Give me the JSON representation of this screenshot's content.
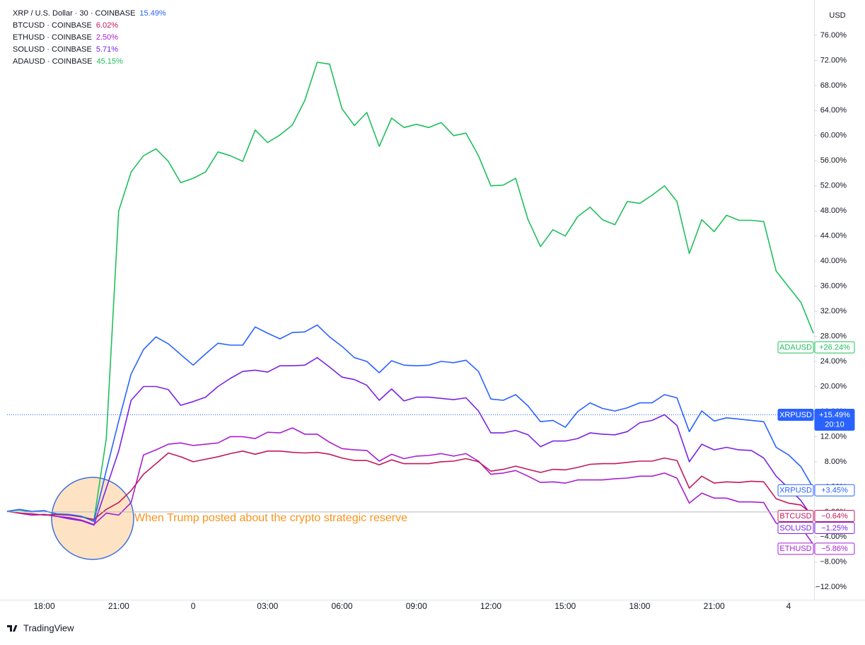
{
  "chart_data": {
    "type": "line",
    "y_axis_label": "USD",
    "annotation": "When Trump posted about the crypto strategic reserve",
    "watermark": "TradingView",
    "x": [
      -7.5,
      -7,
      -6.5,
      -6,
      -5.5,
      -5,
      -4.5,
      -4,
      -3.5,
      -3,
      -2.5,
      -2,
      -1.5,
      -1,
      -0.5,
      0,
      0.5,
      1,
      1.5,
      2,
      2.5,
      3,
      3.5,
      4,
      4.5,
      5,
      5.5,
      6,
      6.5,
      7,
      7.5,
      8,
      8.5,
      9,
      9.5,
      10,
      10.5,
      11,
      11.5,
      12,
      12.5,
      13,
      13.5,
      14,
      14.5,
      15,
      15.5,
      16,
      16.5,
      17,
      17.5,
      18,
      18.5,
      19,
      19.5,
      20,
      20.5,
      21,
      21.5,
      22,
      22.5,
      23,
      23.5,
      24,
      24.5,
      25
    ],
    "xlim": [
      -7.5,
      25
    ],
    "xticks": [
      {
        "value": -6,
        "label": "18:00"
      },
      {
        "value": -3,
        "label": "21:00"
      },
      0,
      {
        "value": 3,
        "label": "03:00"
      },
      {
        "value": 6,
        "label": "06:00"
      },
      {
        "value": 9,
        "label": "09:00"
      },
      {
        "value": 12,
        "label": "12:00"
      },
      {
        "value": 15,
        "label": "15:00"
      },
      {
        "value": 18,
        "label": "18:00"
      },
      {
        "value": 21,
        "label": "21:00"
      },
      {
        "value": 24,
        "label": "4"
      }
    ],
    "ylim": [
      -14,
      80.5
    ],
    "yticks": [
      {
        "value": 76,
        "label": "76.00%"
      },
      {
        "value": 72,
        "label": "72.00%"
      },
      {
        "value": 68,
        "label": "68.00%"
      },
      {
        "value": 64,
        "label": "64.00%"
      },
      {
        "value": 60,
        "label": "60.00%"
      },
      {
        "value": 56,
        "label": "56.00%"
      },
      {
        "value": 52,
        "label": "52.00%"
      },
      {
        "value": 48,
        "label": "48.00%"
      },
      {
        "value": 44,
        "label": "44.00%"
      },
      {
        "value": 40,
        "label": "40.00%"
      },
      {
        "value": 36,
        "label": "36.00%"
      },
      {
        "value": 32,
        "label": "32.00%"
      },
      {
        "value": 28,
        "label": "28.00%"
      },
      {
        "value": 24,
        "label": "24.00%"
      },
      {
        "value": 20,
        "label": "20.00%"
      },
      {
        "value": 16,
        "label": "16.00%"
      },
      {
        "value": 12,
        "label": "12.00%"
      },
      {
        "value": 8,
        "label": "8.00%"
      },
      {
        "value": 4,
        "label": "4.00%"
      },
      {
        "value": 0,
        "label": "0.00%"
      },
      {
        "value": -4,
        "label": "−4.00%"
      },
      {
        "value": -8,
        "label": "−8.00%"
      },
      {
        "value": -12,
        "label": "−12.00%"
      }
    ],
    "grid": false,
    "series": [
      {
        "name": "XRPUSD",
        "legend": "XRP / U.S. Dollar · 30 · COINBASE",
        "change": 15.49,
        "change_label": "15.49%",
        "color": "#2962ff",
        "last": 3.45,
        "last_label": "+3.45%",
        "price_line": 15.49,
        "price_line_label": "+15.49%",
        "countdown": "20:10",
        "values": [
          0.1,
          0.4,
          0.1,
          0.2,
          -0.3,
          -0.4,
          -0.7,
          -1.5,
          6.6,
          14.5,
          22.0,
          25.9,
          27.9,
          26.8,
          25.1,
          23.4,
          25.2,
          26.9,
          26.6,
          26.6,
          29.5,
          28.5,
          27.6,
          28.6,
          28.7,
          29.8,
          27.9,
          26.4,
          24.6,
          24.0,
          22.2,
          24.1,
          23.4,
          23.3,
          23.4,
          24.0,
          23.8,
          24.2,
          22.4,
          18.0,
          17.8,
          18.7,
          16.9,
          14.4,
          14.6,
          13.5,
          16.0,
          17.4,
          16.5,
          16.1,
          16.6,
          17.4,
          17.4,
          18.7,
          18.2,
          12.8,
          16.1,
          14.5,
          15.0,
          14.8,
          14.6,
          14.4,
          10.3,
          9.1,
          7.2,
          3.8
        ]
      },
      {
        "name": "BTCUSD",
        "legend": "BTCUSD · COINBASE",
        "change": 6.02,
        "change_label": "6.02%",
        "color": "#c2185b",
        "last": -0.64,
        "last_label": "−0.64%",
        "values": [
          0.1,
          -0.2,
          -0.3,
          -0.5,
          -0.4,
          -0.5,
          -0.8,
          -1.2,
          0.4,
          1.5,
          3.4,
          6.0,
          7.7,
          9.4,
          8.8,
          8.0,
          8.4,
          8.8,
          9.3,
          9.7,
          9.2,
          9.7,
          9.7,
          9.5,
          9.4,
          9.5,
          9.2,
          8.6,
          8.2,
          8.2,
          7.5,
          8.3,
          7.7,
          7.7,
          7.7,
          8.0,
          8.1,
          8.5,
          8.0,
          6.5,
          6.8,
          7.3,
          6.8,
          6.3,
          6.8,
          6.7,
          7.1,
          7.6,
          7.7,
          7.7,
          7.9,
          8.1,
          8.1,
          8.6,
          8.2,
          3.8,
          5.7,
          4.6,
          4.8,
          4.7,
          4.9,
          4.8,
          2.1,
          1.4,
          1.1,
          -0.5
        ]
      },
      {
        "name": "ETHUSD",
        "legend": "ETHUSD · COINBASE",
        "change": 2.5,
        "change_label": "2.50%",
        "color": "#a91fd1",
        "last": -5.86,
        "last_label": "−5.86%",
        "values": [
          0.1,
          -0.2,
          -0.5,
          -0.4,
          -0.7,
          -0.9,
          -1.3,
          -2.0,
          -0.2,
          -0.5,
          1.5,
          9.1,
          9.9,
          10.8,
          11.0,
          10.6,
          10.8,
          11.0,
          12.0,
          12.0,
          11.7,
          12.7,
          12.6,
          13.4,
          12.4,
          12.4,
          11.1,
          10.1,
          9.9,
          9.8,
          8.1,
          9.2,
          8.5,
          8.9,
          9.0,
          9.3,
          8.9,
          9.3,
          8.1,
          6.0,
          6.2,
          6.6,
          5.7,
          4.7,
          4.8,
          4.6,
          5.1,
          5.1,
          5.1,
          5.3,
          5.4,
          5.7,
          5.7,
          6.2,
          5.4,
          1.4,
          3.0,
          2.2,
          2.2,
          1.6,
          1.6,
          1.5,
          -1.8,
          -2.0,
          -2.4,
          -5.2
        ]
      },
      {
        "name": "SOLUSD",
        "legend": "SOLUSD · COINBASE",
        "change": 5.71,
        "change_label": "5.71%",
        "color": "#7b22e4",
        "last": -1.25,
        "last_label": "−1.25%",
        "values": [
          0.1,
          -0.2,
          -0.5,
          -0.4,
          -0.7,
          -1.1,
          -1.4,
          -2.1,
          3.8,
          9.7,
          17.8,
          20.0,
          20.0,
          19.5,
          17.0,
          17.6,
          18.3,
          20.0,
          21.3,
          22.4,
          22.6,
          22.3,
          23.3,
          23.3,
          23.4,
          24.6,
          23.1,
          21.5,
          21.1,
          20.2,
          17.8,
          19.6,
          17.7,
          18.3,
          18.3,
          18.1,
          17.9,
          18.2,
          16.1,
          12.6,
          12.6,
          13.0,
          12.3,
          10.4,
          11.3,
          11.3,
          11.7,
          12.6,
          12.4,
          12.3,
          12.8,
          14.2,
          14.6,
          15.5,
          13.8,
          8.0,
          10.8,
          9.9,
          10.3,
          9.9,
          9.8,
          8.6,
          5.7,
          3.8,
          1.8,
          -1.1
        ]
      },
      {
        "name": "ADAUSD",
        "legend": "ADAUSD · COINBASE",
        "change": 45.15,
        "change_label": "45.15%",
        "color": "#1fbf5b",
        "last": 26.24,
        "last_label": "+26.24%",
        "values": [
          0.1,
          0.3,
          0.0,
          0.2,
          -0.4,
          -0.5,
          -0.7,
          -1.3,
          11.7,
          48.0,
          54.2,
          56.8,
          57.9,
          55.9,
          52.5,
          53.2,
          54.2,
          57.4,
          56.8,
          55.9,
          60.9,
          58.9,
          60.1,
          61.7,
          65.6,
          71.7,
          71.4,
          64.3,
          61.6,
          63.7,
          58.3,
          62.8,
          61.3,
          61.8,
          61.3,
          62.1,
          60.0,
          60.4,
          56.8,
          52.0,
          52.1,
          53.2,
          46.6,
          42.3,
          45.0,
          44.0,
          47.1,
          48.6,
          46.6,
          45.8,
          49.5,
          49.2,
          50.5,
          52.0,
          49.5,
          41.2,
          46.6,
          44.7,
          47.3,
          46.5,
          46.5,
          46.3,
          38.4,
          35.9,
          33.4,
          28.5
        ]
      }
    ]
  }
}
